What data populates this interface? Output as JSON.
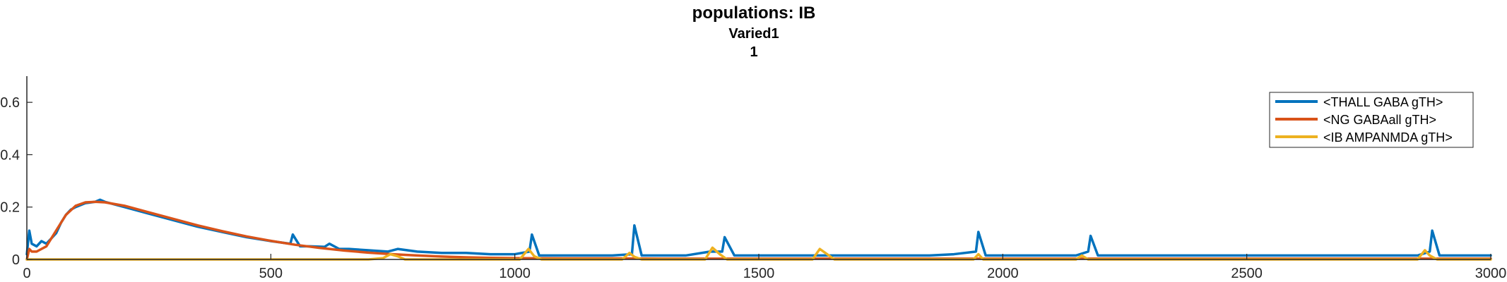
{
  "chart_data": {
    "type": "line",
    "title": "populations: IB",
    "subtitle_lines": [
      "Varied1",
      "1"
    ],
    "xlabel": "",
    "ylabel": "",
    "xlim": [
      0,
      3000
    ],
    "ylim": [
      0,
      0.7
    ],
    "x_ticks": [
      0,
      500,
      1000,
      1500,
      2000,
      2500,
      3000
    ],
    "y_ticks": [
      0,
      0.2,
      0.4,
      0.6
    ],
    "y_tick_labels": [
      "0",
      "0.2",
      "0.4",
      "0.6"
    ],
    "grid": false,
    "legend_position": "top-right",
    "series": [
      {
        "name": "<THALL GABA gTH>",
        "color": "#0072BD",
        "x": [
          0,
          5,
          10,
          20,
          30,
          40,
          50,
          60,
          70,
          80,
          90,
          100,
          120,
          140,
          150,
          160,
          200,
          250,
          300,
          350,
          400,
          450,
          500,
          540,
          545,
          560,
          580,
          610,
          620,
          640,
          660,
          700,
          740,
          760,
          800,
          850,
          900,
          950,
          1000,
          1030,
          1035,
          1050,
          1100,
          1150,
          1200,
          1240,
          1245,
          1260,
          1300,
          1350,
          1400,
          1425,
          1430,
          1450,
          1500,
          1550,
          1600,
          1650,
          1700,
          1750,
          1800,
          1850,
          1900,
          1945,
          1950,
          1965,
          2000,
          2050,
          2100,
          2150,
          2175,
          2180,
          2195,
          2250,
          2300,
          2350,
          2400,
          2450,
          2500,
          2550,
          2600,
          2650,
          2700,
          2750,
          2800,
          2850,
          2875,
          2880,
          2895,
          2950,
          3000
        ],
        "y": [
          0.02,
          0.11,
          0.06,
          0.05,
          0.07,
          0.06,
          0.08,
          0.1,
          0.14,
          0.17,
          0.19,
          0.2,
          0.215,
          0.22,
          0.228,
          0.22,
          0.2,
          0.175,
          0.15,
          0.125,
          0.105,
          0.085,
          0.07,
          0.06,
          0.095,
          0.05,
          0.05,
          0.048,
          0.06,
          0.04,
          0.04,
          0.035,
          0.03,
          0.04,
          0.03,
          0.025,
          0.025,
          0.02,
          0.02,
          0.03,
          0.095,
          0.015,
          0.015,
          0.015,
          0.015,
          0.02,
          0.13,
          0.015,
          0.015,
          0.015,
          0.03,
          0.03,
          0.085,
          0.015,
          0.015,
          0.015,
          0.015,
          0.015,
          0.015,
          0.015,
          0.015,
          0.015,
          0.02,
          0.03,
          0.105,
          0.015,
          0.015,
          0.015,
          0.015,
          0.015,
          0.03,
          0.09,
          0.015,
          0.015,
          0.015,
          0.015,
          0.015,
          0.015,
          0.015,
          0.015,
          0.015,
          0.015,
          0.015,
          0.015,
          0.015,
          0.015,
          0.03,
          0.11,
          0.015,
          0.015,
          0.015
        ]
      },
      {
        "name": "<NG GABAall gTH>",
        "color": "#D95319",
        "x": [
          0,
          5,
          10,
          20,
          30,
          40,
          50,
          60,
          70,
          80,
          100,
          120,
          140,
          160,
          200,
          250,
          300,
          350,
          400,
          450,
          500,
          550,
          600,
          650,
          700,
          750,
          800,
          850,
          900,
          950,
          1000,
          1100,
          1200,
          1300,
          1400,
          1500,
          1600,
          1700,
          1800,
          1900,
          2000,
          2100,
          2200,
          2300,
          2400,
          2500,
          2600,
          2700,
          2800,
          2900,
          3000
        ],
        "y": [
          0.0,
          0.04,
          0.03,
          0.03,
          0.04,
          0.05,
          0.08,
          0.11,
          0.14,
          0.17,
          0.205,
          0.218,
          0.22,
          0.218,
          0.205,
          0.18,
          0.155,
          0.13,
          0.108,
          0.088,
          0.071,
          0.056,
          0.044,
          0.034,
          0.026,
          0.02,
          0.015,
          0.011,
          0.008,
          0.006,
          0.005,
          0.004,
          0.004,
          0.003,
          0.003,
          0.003,
          0.003,
          0.003,
          0.003,
          0.003,
          0.003,
          0.003,
          0.003,
          0.003,
          0.003,
          0.003,
          0.003,
          0.003,
          0.003,
          0.003,
          0.003
        ]
      },
      {
        "name": "<IB AMPANMDA gTH>",
        "color": "#EDB120",
        "x": [
          0,
          700,
          730,
          745,
          760,
          775,
          1010,
          1028,
          1040,
          1055,
          1220,
          1235,
          1245,
          1260,
          1390,
          1405,
          1420,
          1435,
          1610,
          1625,
          1640,
          1655,
          1940,
          1950,
          1960,
          2150,
          2162,
          2175,
          2850,
          2865,
          2875,
          2890,
          3000
        ],
        "y": [
          0,
          0,
          0.005,
          0.02,
          0.012,
          0,
          0,
          0.04,
          0.012,
          0,
          0,
          0.025,
          0.01,
          0,
          0,
          0.045,
          0.02,
          0,
          0,
          0.04,
          0.02,
          0,
          0,
          0.02,
          0,
          0,
          0.015,
          0,
          0,
          0.035,
          0.015,
          0,
          0
        ]
      }
    ]
  }
}
